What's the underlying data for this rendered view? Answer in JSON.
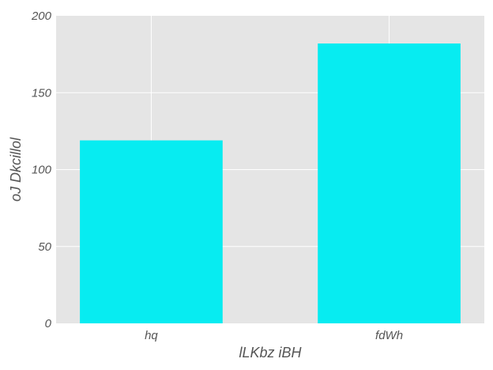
{
  "chart_data": {
    "type": "bar",
    "title": "",
    "categories": [
      "hq",
      "fdWh"
    ],
    "values": [
      119,
      182
    ],
    "xlabel": "lLKbz iBH",
    "ylabel": "oJ Dkcillol",
    "ylim": [
      0,
      200
    ],
    "yticks": [
      "0",
      "50",
      "100",
      "150",
      "200"
    ],
    "grid": true,
    "legend": "none"
  },
  "colors": {
    "bar": "#07ecf1",
    "plot_background": "#e5e5e5",
    "grid": "#ffffff",
    "text": "#555555"
  }
}
